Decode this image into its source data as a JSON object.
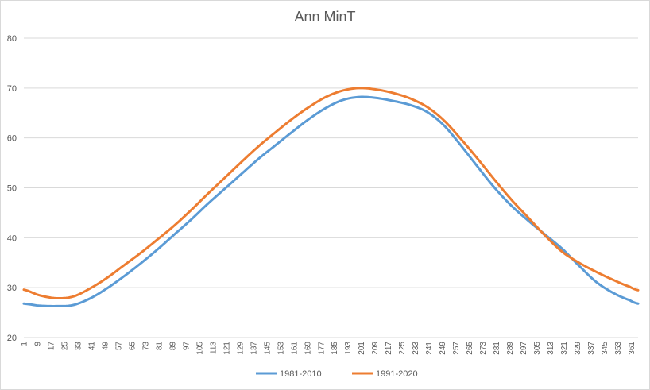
{
  "chart_data": {
    "type": "line",
    "title": "Ann MinT",
    "xlabel": "",
    "ylabel": "",
    "xlim": [
      1,
      365
    ],
    "ylim": [
      20,
      80
    ],
    "y_ticks": [
      20,
      30,
      40,
      50,
      60,
      70,
      80
    ],
    "x_ticks": [
      1,
      9,
      17,
      25,
      33,
      41,
      49,
      57,
      65,
      73,
      81,
      89,
      97,
      105,
      113,
      121,
      129,
      137,
      145,
      153,
      161,
      169,
      177,
      185,
      193,
      201,
      209,
      217,
      225,
      233,
      241,
      249,
      257,
      265,
      273,
      281,
      289,
      297,
      305,
      313,
      321,
      329,
      337,
      345,
      353,
      361
    ],
    "grid": true,
    "legend_position": "bottom",
    "series": [
      {
        "name": "1981-2010",
        "color": "#5b9bd5",
        "points": [
          [
            1,
            26.8
          ],
          [
            10,
            26.4
          ],
          [
            20,
            26.3
          ],
          [
            30,
            26.5
          ],
          [
            40,
            27.8
          ],
          [
            50,
            29.8
          ],
          [
            60,
            32.2
          ],
          [
            70,
            34.8
          ],
          [
            80,
            37.6
          ],
          [
            90,
            40.6
          ],
          [
            100,
            43.6
          ],
          [
            110,
            46.8
          ],
          [
            120,
            49.8
          ],
          [
            130,
            52.8
          ],
          [
            140,
            55.8
          ],
          [
            150,
            58.5
          ],
          [
            160,
            61.2
          ],
          [
            170,
            63.8
          ],
          [
            180,
            66.0
          ],
          [
            190,
            67.6
          ],
          [
            200,
            68.2
          ],
          [
            210,
            68.0
          ],
          [
            220,
            67.4
          ],
          [
            230,
            66.6
          ],
          [
            240,
            65.2
          ],
          [
            250,
            62.5
          ],
          [
            260,
            58.5
          ],
          [
            270,
            54.2
          ],
          [
            280,
            50.0
          ],
          [
            290,
            46.4
          ],
          [
            300,
            43.4
          ],
          [
            310,
            40.6
          ],
          [
            320,
            37.8
          ],
          [
            330,
            34.4
          ],
          [
            340,
            31.2
          ],
          [
            350,
            29.0
          ],
          [
            360,
            27.5
          ],
          [
            365,
            26.8
          ]
        ]
      },
      {
        "name": "1991-2020",
        "color": "#ed7d31",
        "points": [
          [
            1,
            29.6
          ],
          [
            10,
            28.5
          ],
          [
            20,
            27.9
          ],
          [
            30,
            28.2
          ],
          [
            40,
            29.8
          ],
          [
            50,
            31.9
          ],
          [
            60,
            34.4
          ],
          [
            70,
            36.9
          ],
          [
            80,
            39.6
          ],
          [
            90,
            42.4
          ],
          [
            100,
            45.5
          ],
          [
            110,
            48.8
          ],
          [
            120,
            52.0
          ],
          [
            130,
            55.2
          ],
          [
            140,
            58.3
          ],
          [
            150,
            61.1
          ],
          [
            160,
            63.8
          ],
          [
            170,
            66.2
          ],
          [
            180,
            68.2
          ],
          [
            190,
            69.5
          ],
          [
            200,
            70.0
          ],
          [
            210,
            69.7
          ],
          [
            220,
            69.0
          ],
          [
            230,
            67.9
          ],
          [
            240,
            66.2
          ],
          [
            250,
            63.5
          ],
          [
            260,
            59.8
          ],
          [
            270,
            55.8
          ],
          [
            280,
            51.6
          ],
          [
            290,
            47.6
          ],
          [
            300,
            44.0
          ],
          [
            310,
            40.4
          ],
          [
            320,
            37.2
          ],
          [
            330,
            35.0
          ],
          [
            340,
            33.2
          ],
          [
            350,
            31.6
          ],
          [
            360,
            30.2
          ],
          [
            365,
            29.5
          ]
        ]
      }
    ]
  }
}
